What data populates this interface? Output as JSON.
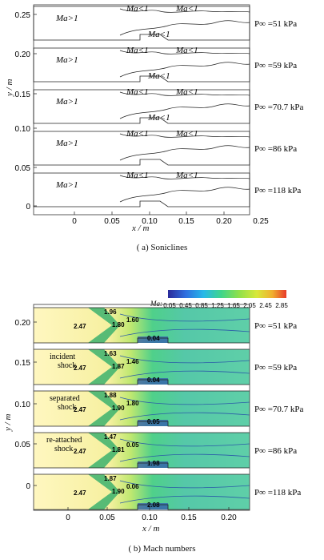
{
  "figure_a": {
    "caption": "( a)  Soniclines",
    "ylabel": "y / m",
    "xlabel": "x / m",
    "yticks": [
      "0.25",
      "0.20",
      "0.15",
      "0.10",
      "0.05",
      "0"
    ],
    "xticks": [
      "0",
      "0.05",
      "0.10",
      "0.15",
      "0.20",
      "0.25"
    ],
    "panels": [
      {
        "pressure": "P∞ =51 kPa",
        "labels": [
          "Ma>1",
          "Ma<1",
          "Ma<1",
          "Ma<1"
        ]
      },
      {
        "pressure": "P∞ =59 kPa",
        "labels": [
          "Ma>1",
          "Ma<1",
          "Ma<1",
          "Ma<1"
        ]
      },
      {
        "pressure": "P∞ =70.7 kPa",
        "labels": [
          "Ma>1",
          "Ma<1",
          "Ma<1",
          "Ma<1"
        ]
      },
      {
        "pressure": "P∞ =86 kPa",
        "labels": [
          "Ma>1",
          "Ma<1",
          "Ma<1"
        ]
      },
      {
        "pressure": "P∞ =118 kPa",
        "labels": [
          "Ma>1",
          "Ma<1",
          "Ma<1"
        ]
      }
    ]
  },
  "figure_b": {
    "caption": "( b)  Mach numbers",
    "ylabel": "y / m",
    "xlabel": "x / m",
    "colorbar_label": "Ma:",
    "colorbar_ticks": [
      "0.05",
      "0.45",
      "0.85",
      "1.25",
      "1.65",
      "2.05",
      "2.45",
      "2.85"
    ],
    "colorbar_colors": [
      "#2a2a9a",
      "#2f6fe0",
      "#27b8e8",
      "#3fd58a",
      "#8fe04a",
      "#d8e83a",
      "#f0b030",
      "#e83a2a"
    ],
    "yticks": [
      "0.20",
      "0.15",
      "0.10",
      "0.05",
      "0"
    ],
    "xticks": [
      "0",
      "0.05",
      "0.10",
      "0.15",
      "0.20"
    ],
    "shock_labels": [
      "incident shock",
      "separated shock",
      "re-attached shock"
    ],
    "panels": [
      {
        "pressure": "P∞ =51 kPa",
        "values": [
          "2.47",
          "1.80",
          "1.60",
          "0.04",
          "1.96"
        ]
      },
      {
        "pressure": "P∞ =59 kPa",
        "values": [
          "2.47",
          "1.87",
          "1.46",
          "0.04",
          "1.63"
        ]
      },
      {
        "pressure": "P∞ =70.7 kPa",
        "values": [
          "2.47",
          "1.90",
          "1.80",
          "0.05",
          "1.88"
        ]
      },
      {
        "pressure": "P∞ =86 kPa",
        "values": [
          "2.47",
          "1.81",
          "0.05",
          "1.98",
          "1.47"
        ]
      },
      {
        "pressure": "P∞ =118 kPa",
        "values": [
          "2.47",
          "1.90",
          "0.06",
          "2.08",
          "1.87"
        ]
      }
    ]
  }
}
